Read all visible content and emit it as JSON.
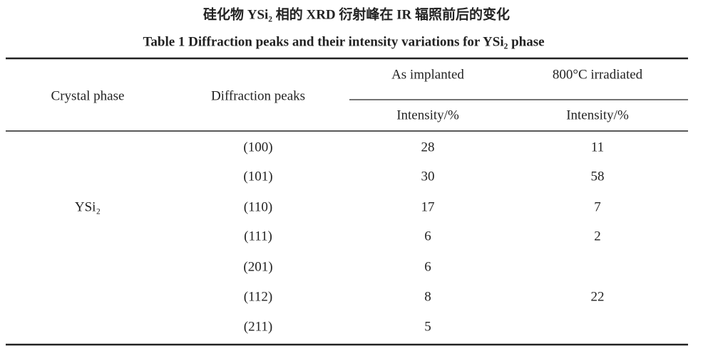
{
  "title_zh": "硅化物 YSi₂ 相的 XRD 衍射峰在 IR 辐照前后的变化",
  "title_en": "Table 1  Diffraction peaks and their intensity variations for YSi₂ phase",
  "table": {
    "headers": {
      "crystal_phase": "Crystal phase",
      "diffraction_peaks": "Diffraction peaks",
      "as_implanted": "As implanted",
      "irradiated": "800°C irradiated",
      "intensity_as_implanted": "Intensity/%",
      "intensity_irradiated": "Intensity/%"
    },
    "phase": "YSi₂",
    "rows": [
      {
        "peak": "(100)",
        "as_implanted": 28,
        "irradiated": 11
      },
      {
        "peak": "(101)",
        "as_implanted": 30,
        "irradiated": 58
      },
      {
        "peak": "(110)",
        "as_implanted": 17,
        "irradiated": 7
      },
      {
        "peak": "(111)",
        "as_implanted": 6,
        "irradiated": 2
      },
      {
        "peak": "(201)",
        "as_implanted": 6
      },
      {
        "peak": "(112)",
        "as_implanted": 8,
        "irradiated": 22
      },
      {
        "peak": "(211)",
        "as_implanted": 5
      }
    ]
  }
}
